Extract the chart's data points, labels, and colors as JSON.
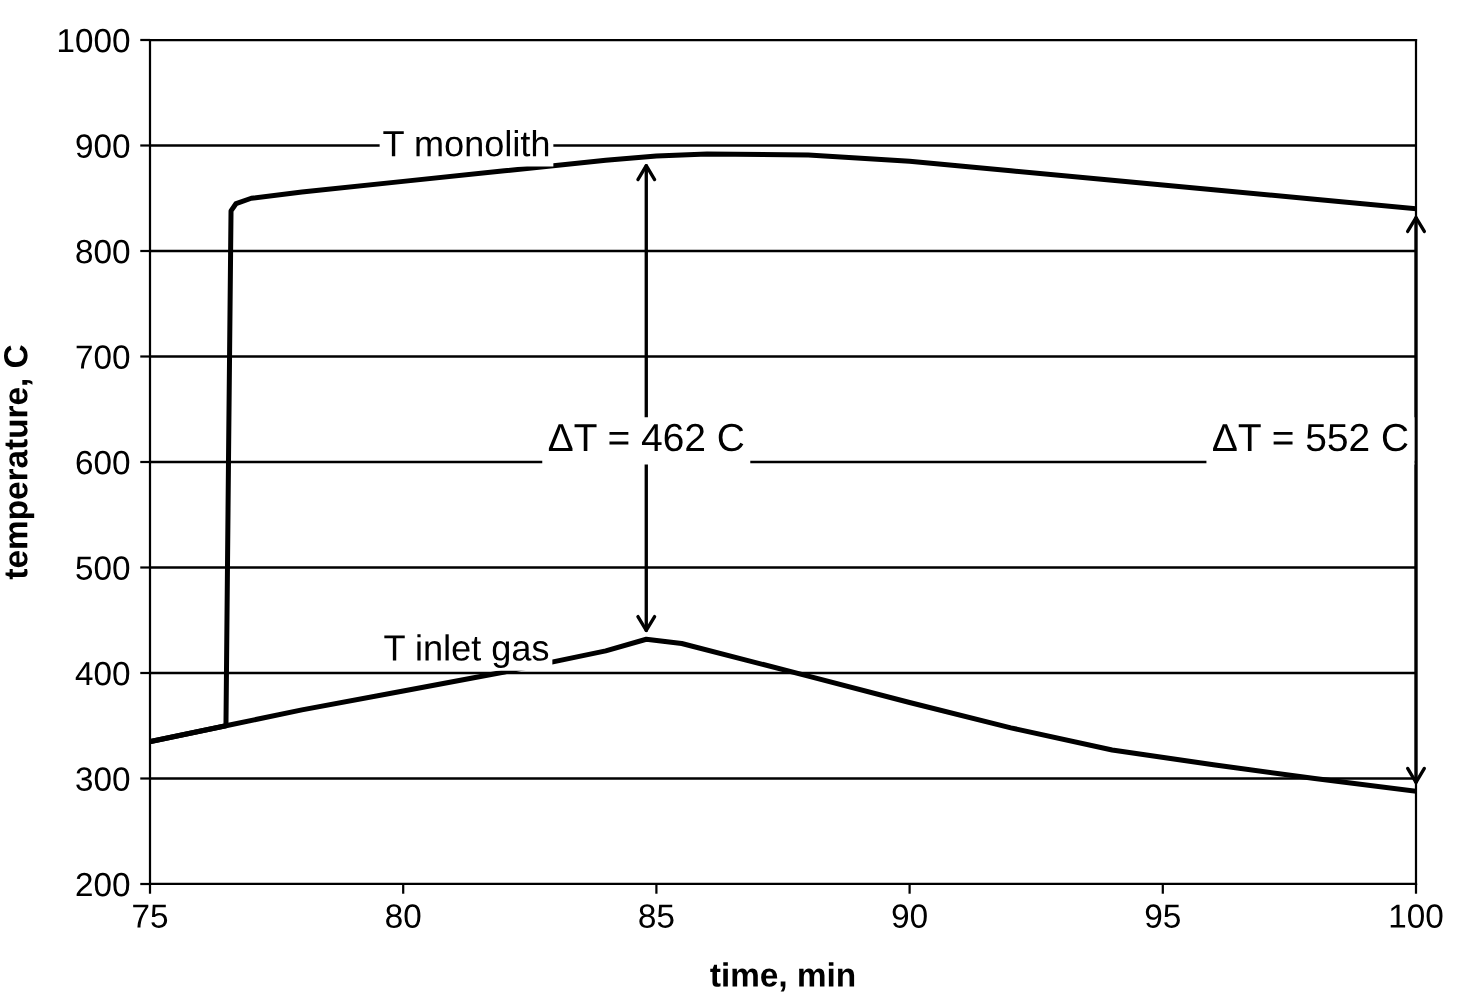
{
  "chart_data": {
    "type": "line",
    "xlabel": "time, min",
    "ylabel": "temperature, C",
    "xlim": [
      75,
      100
    ],
    "xticks": [
      75,
      80,
      85,
      90,
      95,
      100
    ],
    "ylim": [
      200,
      1000
    ],
    "yticks": [
      200,
      300,
      400,
      500,
      600,
      700,
      800,
      900,
      1000
    ],
    "grid": "y",
    "legend": false,
    "marker": "none",
    "line_style": "solid",
    "series": [
      {
        "name": "T monolith",
        "color": "#000000",
        "x": [
          75,
          76.5,
          76.55,
          76.6,
          76.7,
          77,
          78,
          80,
          82,
          84,
          85,
          86,
          88,
          90,
          92,
          94,
          96,
          98,
          100
        ],
        "values": [
          335,
          350,
          600,
          838,
          845,
          850,
          856,
          866,
          876,
          886,
          890,
          892,
          891,
          885,
          876,
          867,
          858,
          849,
          840
        ]
      },
      {
        "name": "T inlet gas",
        "color": "#000000",
        "x": [
          75,
          76.5,
          78,
          80,
          82,
          84,
          84.8,
          85.5,
          88,
          90,
          92,
          94,
          96,
          98,
          100
        ],
        "values": [
          335,
          350,
          365,
          383,
          401,
          421,
          432,
          428,
          397,
          372,
          348,
          327,
          313,
          300,
          288
        ]
      }
    ],
    "annotations": [
      "ΔT = 462 C",
      "ΔT = 552 C"
    ]
  }
}
